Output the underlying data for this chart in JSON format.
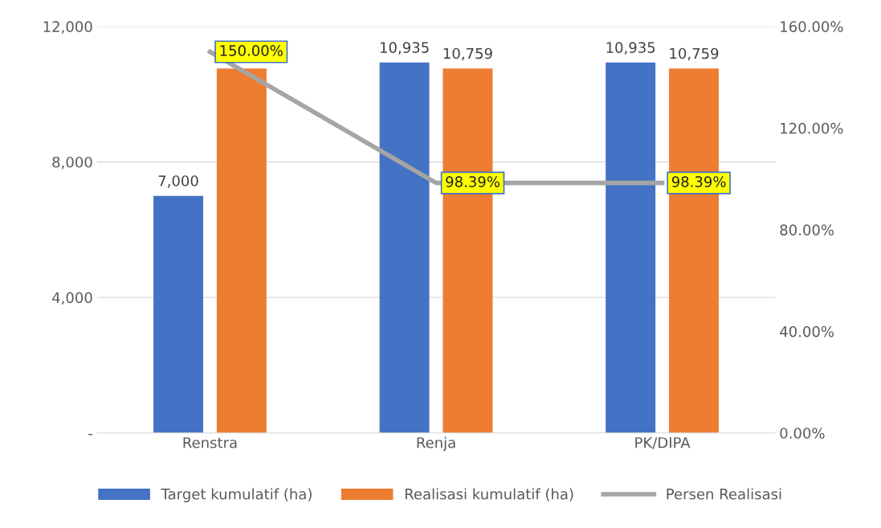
{
  "chart_data": {
    "type": "bar",
    "categories": [
      "Renstra",
      "Renja",
      "PK/DIPA"
    ],
    "series": [
      {
        "name": "Target kumulatif (ha)",
        "color": "#4472c4",
        "values": [
          7000,
          10935,
          10935
        ],
        "value_labels": [
          "7,000",
          "10,935",
          "10,935"
        ]
      },
      {
        "name": "Realisasi kumulatif (ha)",
        "color": "#ed7d31",
        "values": [
          10759,
          10759,
          10759
        ],
        "value_labels": [
          null,
          "10,759",
          "10,759"
        ]
      },
      {
        "name": "Persen Realisasi",
        "type": "line",
        "axis": "y2",
        "color": "#a5a5a5",
        "values": [
          150.0,
          98.39,
          98.39
        ],
        "value_labels": [
          "150.00%",
          "98.39%",
          "98.39%"
        ],
        "marker": "none"
      }
    ],
    "ylim": [
      0,
      12000
    ],
    "yticks": [
      {
        "value": 0,
        "label": "-"
      },
      {
        "value": 4000,
        "label": "4,000"
      },
      {
        "value": 8000,
        "label": "8,000"
      },
      {
        "value": 12000,
        "label": "12,000"
      }
    ],
    "y2lim": [
      0,
      160
    ],
    "y2ticks": [
      {
        "value": 0,
        "label": "0.00%"
      },
      {
        "value": 40,
        "label": "40.00%"
      },
      {
        "value": 80,
        "label": "80.00%"
      },
      {
        "value": 120,
        "label": "120.00%"
      },
      {
        "value": 160,
        "label": "160.00%"
      }
    ],
    "grid": "y",
    "legend": "bottom"
  }
}
